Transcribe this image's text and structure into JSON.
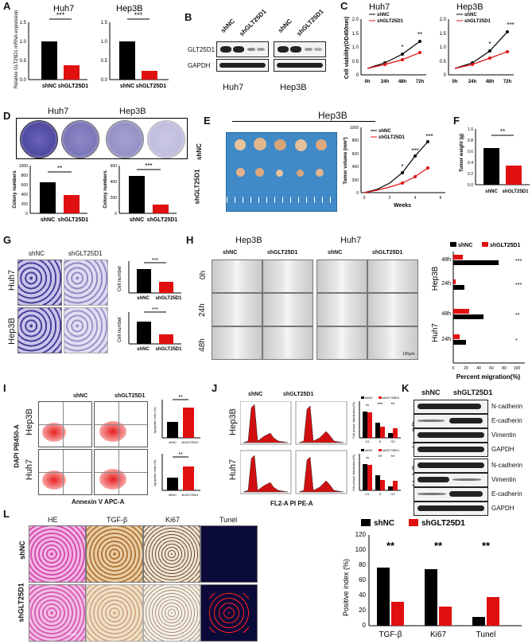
{
  "labels": {
    "A": "A",
    "B": "B",
    "C": "C",
    "D": "D",
    "E": "E",
    "F": "F",
    "G": "G",
    "H": "H",
    "I": "I",
    "J": "J",
    "K": "K",
    "L": "L"
  },
  "cells": {
    "huh7": "Huh7",
    "hep3b": "Hep3B"
  },
  "groups": {
    "shnc": "shNC",
    "shglt": "shGLT25D1"
  },
  "sig": {
    "s3": "***",
    "s2": "**",
    "s1": "*",
    "ns": "ns"
  },
  "panelA": {
    "ylabel": "Relative GLT25D1 mRNA expression",
    "ticks": [
      "0.0",
      "0.5",
      "1.0",
      "1.5"
    ]
  },
  "panelB": {
    "rows": [
      "GLT25D1",
      "GAPDH"
    ]
  },
  "panelC": {
    "ylabel": "Cell viability(OD450nm)",
    "ticks": [
      "0",
      "0.5",
      "1.0",
      "1.5",
      "2.0"
    ],
    "x": [
      "0h",
      "24h",
      "48h",
      "72h"
    ]
  },
  "panelD": {
    "ylabel": "Colony numbers",
    "ticksL": [
      "0",
      "200",
      "400",
      "600",
      "800",
      "1000"
    ],
    "ticksR": [
      "0",
      "200",
      "400",
      "600"
    ]
  },
  "panelE": {
    "cell": "Hep3B",
    "ylabel": "Tumor volume (mm³)",
    "xlabel": "Weeks",
    "yt": [
      "0",
      "200",
      "400",
      "600",
      "800",
      "1000"
    ],
    "xt": [
      "0",
      "2",
      "4",
      "6"
    ]
  },
  "panelF": {
    "ylabel": "Tumor weight (g)",
    "ticks": [
      "0.0",
      "0.2",
      "0.4",
      "0.6",
      "0.8",
      "1.0"
    ]
  },
  "panelG": {
    "ylabel": "Cell number"
  },
  "panelH": {
    "rows": [
      "0h",
      "24h",
      "48h"
    ],
    "hlabels": [
      "48h",
      "24h",
      "48h",
      "24h"
    ],
    "xlabel": "Percent migration(%)",
    "xt": [
      "0",
      "20",
      "40",
      "60",
      "80",
      "100"
    ],
    "scale": "100μm"
  },
  "panelI": {
    "xlabel": "Annexin V APC-A",
    "ylabel": "DAPI PB450-A",
    "ylab2": "Apoptotic cells (%)"
  },
  "panelJ": {
    "xlabel": "FL2-A PI PE-A",
    "ylab2": "Cell phase distribution(%)",
    "phases": [
      "G1",
      "S",
      "G2"
    ]
  },
  "panelK": {
    "hep": [
      "N-cadherin",
      "E-cadherin",
      "Vimentin",
      "GAPDH"
    ],
    "huh": [
      "N-cadherin",
      "Vimentin",
      "E-cadherin",
      "GAPDH"
    ]
  },
  "panelL": {
    "cols": [
      "HE",
      "TGF-β",
      "Ki67",
      "Tunel"
    ],
    "ylabel": "Positive index (%)",
    "ticks": [
      "0",
      "20",
      "40",
      "60",
      "80",
      "100",
      "120"
    ],
    "cats": [
      "TGF-β",
      "Ki67",
      "Tunel"
    ],
    "scale": "100μm"
  },
  "chart_data": [
    {
      "type": "bar",
      "title": "Huh7",
      "ylabel": "Relative GLT25D1 mRNA expression",
      "categories": [
        "shNC",
        "shGLT25D1"
      ],
      "values": [
        1.0,
        0.38
      ],
      "ylim": [
        0,
        1.5
      ]
    },
    {
      "type": "bar",
      "title": "Hep3B",
      "categories": [
        "shNC",
        "shGLT25D1"
      ],
      "values": [
        1.0,
        0.22
      ],
      "ylim": [
        0,
        1.5
      ]
    },
    {
      "type": "line",
      "title": "Huh7",
      "ylabel": "Cell viability(OD450nm)",
      "x": [
        "0h",
        "24h",
        "48h",
        "72h"
      ],
      "series": [
        {
          "name": "shNC",
          "values": [
            0.25,
            0.45,
            0.75,
            1.2
          ]
        },
        {
          "name": "shGLT25D1",
          "values": [
            0.25,
            0.38,
            0.55,
            0.8
          ]
        }
      ],
      "ylim": [
        0,
        2.0
      ]
    },
    {
      "type": "line",
      "title": "Hep3B",
      "x": [
        "0h",
        "24h",
        "48h",
        "72h"
      ],
      "series": [
        {
          "name": "shNC",
          "values": [
            0.25,
            0.45,
            0.85,
            1.55
          ]
        },
        {
          "name": "shGLT25D1",
          "values": [
            0.25,
            0.38,
            0.6,
            0.82
          ]
        }
      ],
      "ylim": [
        0,
        2.0
      ]
    },
    {
      "type": "bar",
      "title": "Huh7",
      "ylabel": "Colony numbers",
      "categories": [
        "shNC",
        "shGLT25D1"
      ],
      "values": [
        650,
        390
      ],
      "ylim": [
        0,
        1000
      ]
    },
    {
      "type": "bar",
      "title": "Hep3B",
      "categories": [
        "shNC",
        "shGLT25D1"
      ],
      "values": [
        470,
        110
      ],
      "ylim": [
        0,
        600
      ]
    },
    {
      "type": "line",
      "title": "Hep3B tumor volume",
      "ylabel": "Tumor volume (mm³)",
      "xlabel": "Weeks",
      "x": [
        0,
        1,
        2,
        3,
        4,
        5
      ],
      "series": [
        {
          "name": "shNC",
          "values": [
            0,
            50,
            150,
            300,
            560,
            780
          ]
        },
        {
          "name": "shGLT25D1",
          "values": [
            0,
            40,
            90,
            150,
            240,
            380
          ]
        }
      ],
      "ylim": [
        0,
        1000
      ]
    },
    {
      "type": "bar",
      "title": "Tumor weight",
      "ylabel": "Tumor weight (g)",
      "categories": [
        "shNC",
        "shGLT25D1"
      ],
      "values": [
        0.66,
        0.34
      ],
      "ylim": [
        0,
        1.0
      ]
    },
    {
      "type": "bar",
      "title": "Huh7 invasion",
      "ylabel": "Cell number",
      "categories": [
        "shNC",
        "shGLT25D1"
      ],
      "values": [
        320,
        150
      ]
    },
    {
      "type": "bar",
      "title": "Hep3B invasion",
      "ylabel": "Cell number",
      "categories": [
        "shNC",
        "shGLT25D1"
      ],
      "values": [
        280,
        110
      ]
    },
    {
      "type": "bar",
      "title": "Percent migration(%)",
      "categories": [
        "Hep3B 48h",
        "Hep3B 24h",
        "Huh7 48h",
        "Huh7 24h"
      ],
      "series": [
        {
          "name": "shNC",
          "values": [
            70,
            17,
            47,
            20
          ]
        },
        {
          "name": "shGLT25D1",
          "values": [
            15,
            3,
            25,
            10
          ]
        }
      ],
      "xlim": [
        0,
        100
      ]
    },
    {
      "type": "bar",
      "title": "Hep3B apoptosis",
      "ylabel": "Apoptotic cells (%)",
      "categories": [
        "shNC",
        "shGLT25D1"
      ],
      "values": [
        10,
        18
      ]
    },
    {
      "type": "bar",
      "title": "Huh7 apoptosis",
      "ylabel": "Apoptotic cells (%)",
      "categories": [
        "shNC",
        "shGLT25D1"
      ],
      "values": [
        6,
        11
      ]
    },
    {
      "type": "bar",
      "title": "Hep3B cell cycle",
      "categories": [
        "G1",
        "S",
        "G2"
      ],
      "series": [
        {
          "name": "shNC",
          "values": [
            57,
            33,
            10
          ]
        },
        {
          "name": "shGLT25D1",
          "values": [
            55,
            25,
            20
          ]
        }
      ]
    },
    {
      "type": "bar",
      "title": "Huh7 cell cycle",
      "categories": [
        "G1",
        "S",
        "G2"
      ],
      "series": [
        {
          "name": "shNC",
          "values": [
            58,
            33,
            9
          ]
        },
        {
          "name": "shGLT25D1",
          "values": [
            56,
            23,
            21
          ]
        }
      ]
    },
    {
      "type": "bar",
      "title": "Positive index (%)",
      "ylabel": "Positive index (%)",
      "categories": [
        "TGF-β",
        "Ki67",
        "Tunel"
      ],
      "series": [
        {
          "name": "shNC",
          "values": [
            77,
            75,
            12
          ]
        },
        {
          "name": "shGLT25D1",
          "values": [
            32,
            25,
            38
          ]
        }
      ],
      "ylim": [
        0,
        120
      ]
    }
  ]
}
